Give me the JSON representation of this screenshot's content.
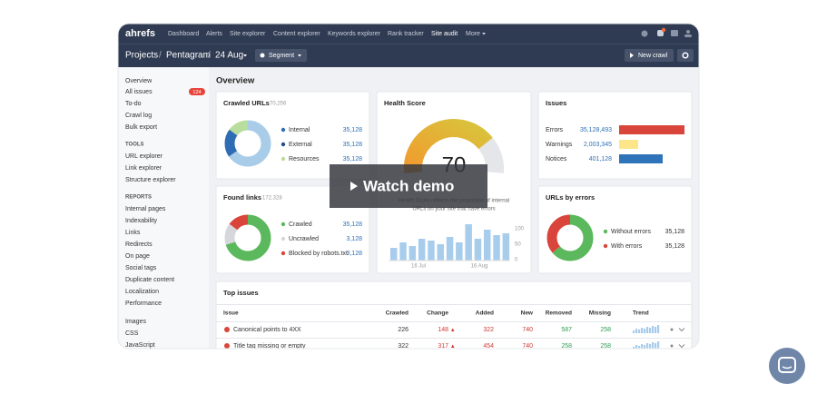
{
  "nav": {
    "logo": "ahrefs",
    "links": [
      "Dashboard",
      "Alerts",
      "Site explorer",
      "Content explorer",
      "Keywords explorer",
      "Rank tracker",
      "Site audit",
      "More"
    ]
  },
  "breadcrumb": [
    "Projects",
    "Pentagram",
    "24 Aug"
  ],
  "segment": "Segment",
  "new_crawl": "New crawl",
  "sidebar": {
    "main": [
      "Overview",
      "All issues",
      "To-do",
      "Crawl log",
      "Bulk export"
    ],
    "badge": "124",
    "tools_heading": "TOOLS",
    "tools": [
      "URL explorer",
      "Link explorer",
      "Structure explorer"
    ],
    "reports_heading": "REPORTS",
    "reports": [
      "Internal pages",
      "Indexability",
      "Links",
      "Redirects",
      "On page",
      "Social tags",
      "Duplicate content",
      "Localization",
      "Performance"
    ],
    "more": [
      "Images",
      "CSS",
      "JavaScript"
    ]
  },
  "page_title": "Overview",
  "crawled_urls": {
    "title": "Crawled URLs",
    "total": "70,256",
    "rows": [
      {
        "label": "Internal",
        "value": "35,128"
      },
      {
        "label": "External",
        "value": "35,128"
      },
      {
        "label": "Resources",
        "value": "35,128"
      }
    ]
  },
  "health_score": {
    "title": "Health Score",
    "score": "70",
    "description": [
      "Health Score reflects the proportion of internal",
      "URLs on your site that have errors"
    ],
    "y_ticks": [
      "100",
      "50",
      "0"
    ],
    "x_labels": [
      "16 Jul",
      "16 Aug"
    ]
  },
  "issues": {
    "title": "Issues",
    "rows": [
      {
        "label": "Errors",
        "value": "35,128,493"
      },
      {
        "label": "Warnings",
        "value": "2,003,345"
      },
      {
        "label": "Notices",
        "value": "401,128"
      }
    ]
  },
  "found_links": {
    "title": "Found links",
    "total": "172,328",
    "rows": [
      {
        "label": "Crawled",
        "value": "35,128"
      },
      {
        "label": "Uncrawled",
        "value": "3,128"
      },
      {
        "label": "Blocked by robots.txt",
        "value": "3,128"
      }
    ]
  },
  "urls_by_errors": {
    "title": "URLs by errors",
    "rows": [
      {
        "label": "Without errors",
        "value": "35,128"
      },
      {
        "label": "With errors",
        "value": "35,128"
      }
    ]
  },
  "top_issues": {
    "title": "Top issues",
    "columns": [
      "Issue",
      "Crawled",
      "Change",
      "Added",
      "New",
      "Removed",
      "Missing",
      "Trend"
    ],
    "rows": [
      [
        "Canonical points to 4XX",
        "226",
        "148",
        "322",
        "740",
        "587",
        "258"
      ],
      [
        "Title tag missing or empty",
        "322",
        "317",
        "454",
        "740",
        "258",
        "258"
      ]
    ]
  },
  "watch_demo": "Watch demo"
}
